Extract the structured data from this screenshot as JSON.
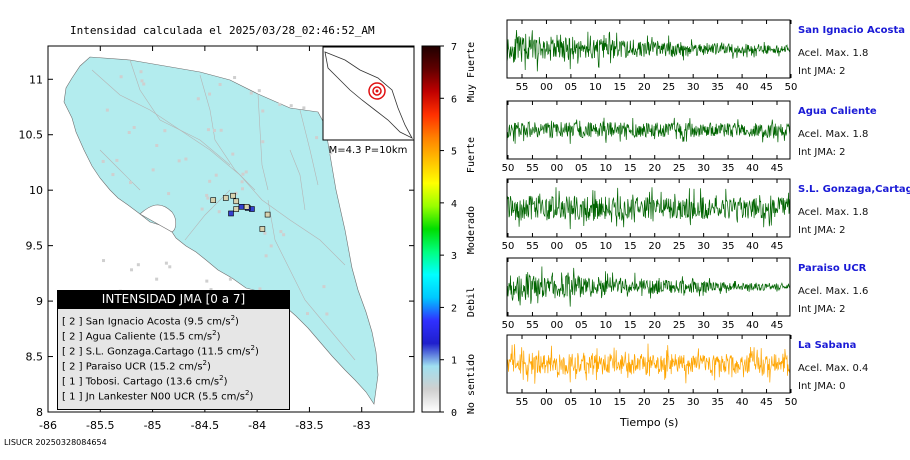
{
  "map": {
    "title": "Intensidad calculada el 2025/03/28_02:46:52_AM",
    "x_ticks": [
      "-86",
      "-85.5",
      "-85",
      "-84.5",
      "-84",
      "-83.5",
      "-83"
    ],
    "y_ticks": [
      "11",
      "10.5",
      "10",
      "9.5",
      "9",
      "8.5",
      "8"
    ],
    "inset_label": "M=4.3 P=10km",
    "footer_id": "LISUCR 20250328084654",
    "colors": {
      "land": "#b3ecee",
      "stations": "#cfcfcf"
    }
  },
  "colorbar": {
    "ticks": [
      "0",
      "1",
      "2",
      "3",
      "4",
      "5",
      "6",
      "7"
    ],
    "category_labels": [
      "No sentido",
      "Debil",
      "Moderado",
      "Fuerte",
      "Muy Fuerte"
    ]
  },
  "legend": {
    "title": "INTENSIDAD JMA [0 a 7]",
    "rows": [
      {
        "text": "[ 2 ]  San Ignacio Acosta (9.5 cm/s",
        "sup": "2",
        "close": ")"
      },
      {
        "text": "[ 2 ]  Agua Caliente (15.5 cm/s",
        "sup": "2",
        "close": ")"
      },
      {
        "text": "[ 2 ]  S.L. Gonzaga.Cartago (11.5 cm/s",
        "sup": "2",
        "close": ")"
      },
      {
        "text": "[ 2 ]  Paraiso UCR (15.2 cm/s",
        "sup": "2",
        "close": ")"
      },
      {
        "text": "[ 1 ]  Tobosi. Cartago (13.6 cm/s",
        "sup": "2",
        "close": ")"
      },
      {
        "text": "[ 1 ]  Jn Lankester N00 UCR (5.5 cm/s",
        "sup": "2",
        "close": ")"
      }
    ]
  },
  "chart_data": [
    {
      "type": "heatmap",
      "title": "Intensidad calculada el 2025/03/28_02:46:52_AM",
      "xlim": [
        -86.0,
        -82.5
      ],
      "ylim": [
        8.0,
        11.3
      ],
      "x_ticks": [
        -86,
        -85.5,
        -85,
        -84.5,
        -84,
        -83.5,
        -83
      ],
      "y_ticks": [
        8,
        8.5,
        9,
        9.5,
        10,
        10.5,
        11
      ],
      "colorbar_range": [
        0,
        7
      ],
      "highlighted_stations": [
        {
          "lon": -84.05,
          "lat": 9.83,
          "intensity": 2
        },
        {
          "lon": -84.09,
          "lat": 9.84,
          "intensity": 2
        },
        {
          "lon": -84.15,
          "lat": 9.85,
          "intensity": 2
        },
        {
          "lon": -84.2,
          "lat": 9.9,
          "intensity": 1
        },
        {
          "lon": -84.42,
          "lat": 9.91,
          "intensity": 1
        },
        {
          "lon": -84.2,
          "lat": 9.83,
          "intensity": 1
        },
        {
          "lon": -84.1,
          "lat": 9.85,
          "intensity": 1
        },
        {
          "lon": -83.9,
          "lat": 9.78,
          "intensity": 1
        },
        {
          "lon": -83.95,
          "lat": 9.65,
          "intensity": 1
        },
        {
          "lon": -84.25,
          "lat": 9.79,
          "intensity": 2
        },
        {
          "lon": -84.3,
          "lat": 9.93,
          "intensity": 1
        },
        {
          "lon": -84.23,
          "lat": 9.95,
          "intensity": 1
        }
      ]
    },
    {
      "type": "line",
      "panels": [
        {
          "station": "San Ignacio Acosta",
          "acel": "Acel. Max. 1.8",
          "jma": "Int JMA: 2",
          "color": "#006400",
          "x_ticks": [
            "55",
            "00",
            "05",
            "10",
            "15",
            "20",
            "25",
            "30",
            "35",
            "40",
            "45",
            "50"
          ],
          "amp_start": 0.9,
          "amp_end": 0.25,
          "burst": 0.02,
          "burst_amp": 1.0,
          "seed": 11
        },
        {
          "station": "Agua Caliente",
          "acel": "Acel. Max. 1.8",
          "jma": "Int JMA: 2",
          "color": "#006400",
          "x_ticks": [
            "50",
            "55",
            "00",
            "05",
            "10",
            "15",
            "20",
            "25",
            "30",
            "35",
            "40",
            "45"
          ],
          "amp_start": 0.55,
          "amp_end": 0.45,
          "burst": 0.62,
          "burst_amp": 0.95,
          "seed": 23
        },
        {
          "station": "S.L. Gonzaga,Cartago",
          "acel": "Acel. Max. 1.8",
          "jma": "Int JMA: 2",
          "color": "#006400",
          "x_ticks": [
            "50",
            "55",
            "00",
            "05",
            "10",
            "15",
            "20",
            "25",
            "30",
            "35",
            "40",
            "45"
          ],
          "amp_start": 0.85,
          "amp_end": 0.7,
          "burst": 0.3,
          "burst_amp": 1.0,
          "seed": 37
        },
        {
          "station": "Paraiso UCR",
          "acel": "Acel. Max. 1.6",
          "jma": "Int JMA: 2",
          "color": "#006400",
          "x_ticks": [
            "50",
            "55",
            "00",
            "05",
            "10",
            "15",
            "20",
            "25",
            "30",
            "35",
            "40",
            "45"
          ],
          "amp_start": 0.95,
          "amp_end": 0.15,
          "burst": 0.02,
          "burst_amp": 1.0,
          "seed": 51
        },
        {
          "station": "La Sabana",
          "acel": "Acel. Max. 0.4",
          "jma": "Int JMA: 0",
          "color": "#ffa500",
          "x_ticks": [
            "55",
            "00",
            "05",
            "10",
            "15",
            "20",
            "25",
            "30",
            "35",
            "40",
            "45",
            "50"
          ],
          "amp_start": 0.75,
          "amp_end": 0.7,
          "burst": 0.5,
          "burst_amp": 0.95,
          "seed": 67
        }
      ],
      "xlabel": "Tiempo (s)"
    }
  ]
}
